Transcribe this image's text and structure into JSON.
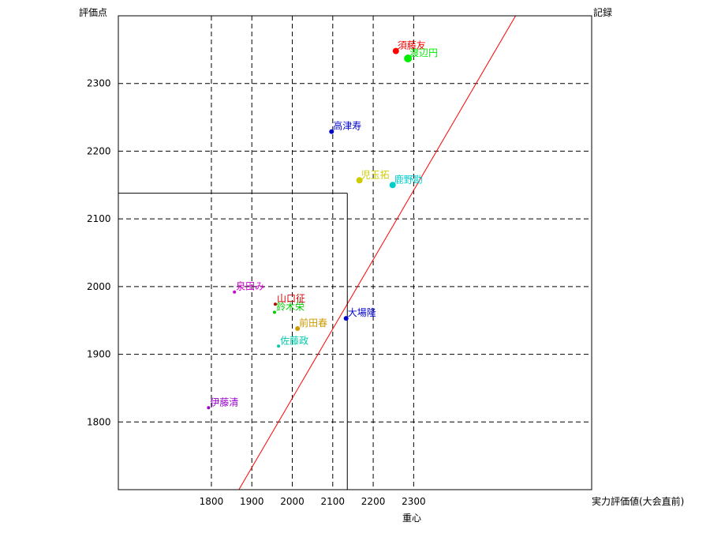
{
  "chart_data": {
    "type": "scatter",
    "top_left_label": "評価点",
    "top_right_label": "記録",
    "xlabel": "重心",
    "xlabel_right": "実力評価値(大会直前)",
    "xlim": [
      1570,
      2740
    ],
    "ylim": [
      1700,
      2400
    ],
    "x_ticks": [
      1800,
      1900,
      2000,
      2100,
      2200,
      2300
    ],
    "y_ticks": [
      1800,
      1900,
      2000,
      2100,
      2200,
      2300
    ],
    "grid": true,
    "reference_line": {
      "color": "#ff0000",
      "points": [
        [
          1868,
          1700
        ],
        [
          2552,
          2400
        ]
      ]
    },
    "highlight": {
      "x": 2136,
      "y": 2138,
      "color": "#000000"
    },
    "points": [
      {
        "label": "須藤友",
        "x": 2256,
        "y": 2348,
        "color": "#ff0000",
        "size": 4
      },
      {
        "label": "渡辺円",
        "x": 2286,
        "y": 2337,
        "color": "#00ee00",
        "size": 5
      },
      {
        "label": "高津寿",
        "x": 2097,
        "y": 2229,
        "color": "#0000cc",
        "size": 3
      },
      {
        "label": "児玉拓",
        "x": 2166,
        "y": 2157,
        "color": "#cccc00",
        "size": 4
      },
      {
        "label": "鹿野勘",
        "x": 2248,
        "y": 2150,
        "color": "#00cccc",
        "size": 4
      },
      {
        "label": "泉田み",
        "x": 1857,
        "y": 1992,
        "color": "#cc00cc",
        "size": 2
      },
      {
        "label": "山口征",
        "x": 1958,
        "y": 1974,
        "color": "#cc0000",
        "size": 2
      },
      {
        "label": "鈴木栄",
        "x": 1956,
        "y": 1962,
        "color": "#00cc00",
        "size": 2
      },
      {
        "label": "前田春",
        "x": 2013,
        "y": 1938,
        "color": "#cc9900",
        "size": 3
      },
      {
        "label": "大場隆",
        "x": 2133,
        "y": 1953,
        "color": "#0000cc",
        "size": 3
      },
      {
        "label": "佐藤政",
        "x": 1966,
        "y": 1912,
        "color": "#00ccaa",
        "size": 2
      },
      {
        "label": "伊藤清",
        "x": 1793,
        "y": 1821,
        "color": "#9900cc",
        "size": 2
      }
    ]
  }
}
